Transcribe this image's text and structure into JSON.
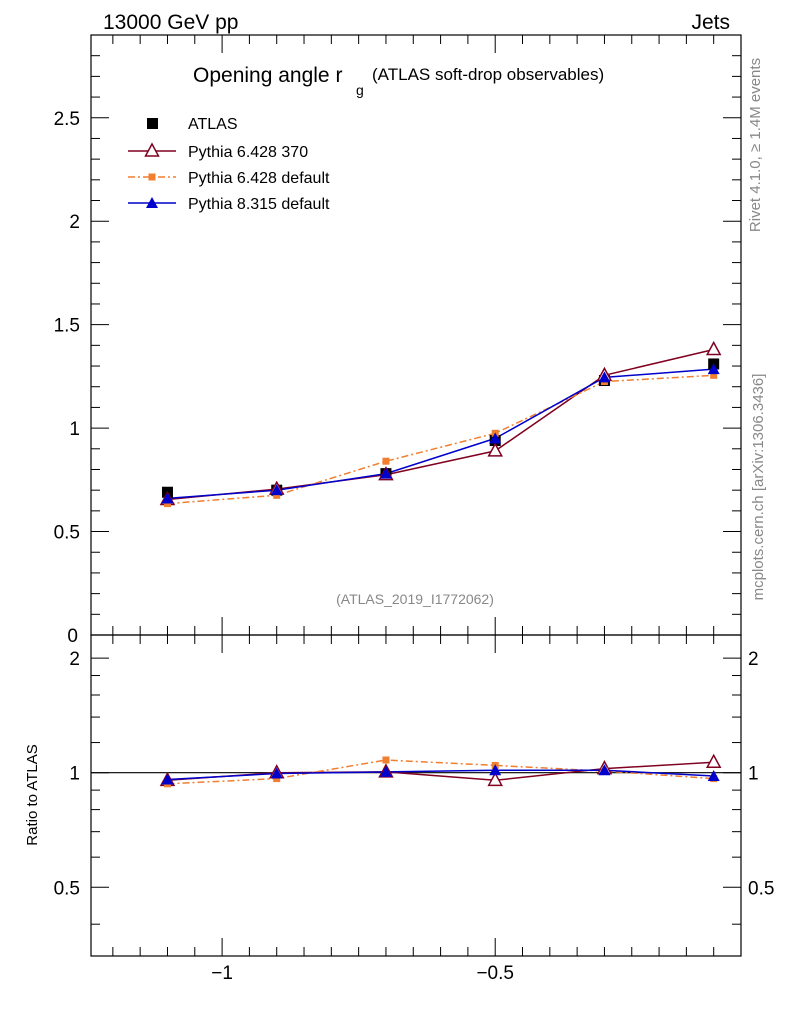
{
  "header": {
    "left": "13000 GeV pp",
    "right": "Jets"
  },
  "side": {
    "rivet": "Rivet 4.1.0, ≥ 1.4M events",
    "mcplots": "mcplots.cern.ch [arXiv:1306.3436]"
  },
  "colors": {
    "atlas": "#000000",
    "py6_370": "#800020",
    "py6_default": "#f07f30",
    "py8_default": "#0000cc"
  },
  "chart_data": [
    {
      "type": "line",
      "title_main": "Opening angle r",
      "title_sub": "g",
      "title_rest": "(ATLAS soft-drop observables)",
      "watermark": "(ATLAS_2019_I1772062)",
      "xlim": [
        -1.24,
        -0.05
      ],
      "ylim": [
        0,
        2.9
      ],
      "yticks": [
        0.5,
        1,
        1.5,
        2,
        2.5
      ],
      "ytick_labels": [
        "0.5",
        "1",
        "1.5",
        "2",
        "2.5"
      ],
      "y_zero_label": "0",
      "x": [
        -1.1,
        -0.9,
        -0.7,
        -0.5,
        -0.3,
        -0.1
      ],
      "series": [
        {
          "name": "ATLAS",
          "key": "atlas",
          "marker": "square",
          "line": "none",
          "values": [
            0.69,
            0.7,
            0.78,
            0.94,
            1.23,
            1.31
          ]
        },
        {
          "name": "Pythia 6.428 370",
          "key": "py6_370",
          "marker": "open-triangle",
          "line": "solid",
          "values": [
            0.655,
            0.705,
            0.775,
            0.89,
            1.255,
            1.38
          ]
        },
        {
          "name": "Pythia 6.428 default",
          "key": "py6_default",
          "marker": "small-square",
          "line": "dashdot",
          "values": [
            0.635,
            0.675,
            0.84,
            0.975,
            1.225,
            1.255
          ]
        },
        {
          "name": "Pythia 8.315 default",
          "key": "py8_default",
          "marker": "triangle",
          "line": "solid",
          "values": [
            0.66,
            0.7,
            0.78,
            0.95,
            1.245,
            1.285
          ]
        }
      ]
    },
    {
      "type": "line",
      "ylabel": "Ratio to ATLAS",
      "xlim": [
        -1.24,
        -0.05
      ],
      "ylim": [
        0.33,
        2.3
      ],
      "yscale": "log",
      "yticks": [
        0.5,
        1,
        2
      ],
      "ytick_labels": [
        "0.5",
        "1",
        "2"
      ],
      "xticks": [
        -1,
        -0.5
      ],
      "xtick_labels": [
        "−1",
        "−0.5"
      ],
      "x": [
        -1.1,
        -0.9,
        -0.7,
        -0.5,
        -0.3,
        -0.1
      ],
      "series": [
        {
          "name": "Pythia 6.428 370",
          "key": "py6_370",
          "values": [
            0.955,
            1.0,
            1.005,
            0.955,
            1.025,
            1.065
          ]
        },
        {
          "name": "Pythia 6.428 default",
          "key": "py6_default",
          "values": [
            0.935,
            0.965,
            1.08,
            1.045,
            1.01,
            0.965
          ]
        },
        {
          "name": "Pythia 8.315 default",
          "key": "py8_default",
          "values": [
            0.96,
            0.995,
            1.005,
            1.015,
            1.015,
            0.98
          ]
        }
      ]
    }
  ]
}
